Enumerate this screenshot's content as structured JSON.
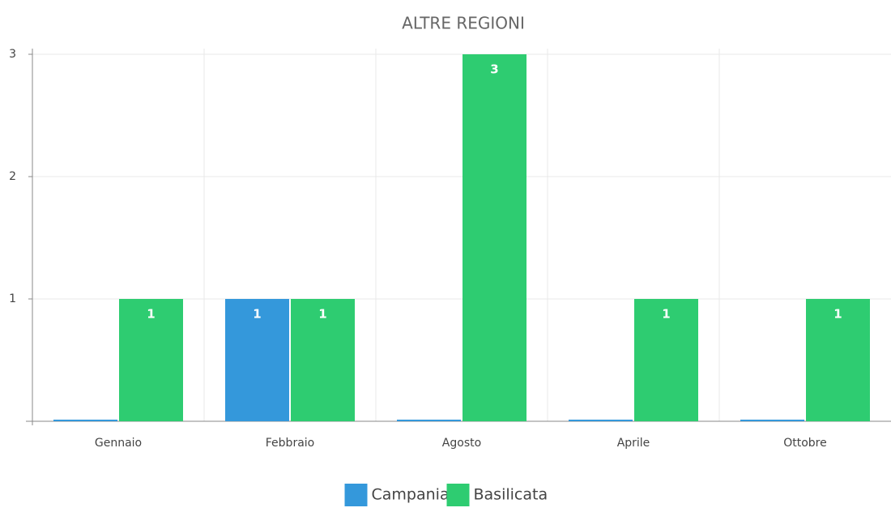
{
  "chart_data": {
    "type": "bar",
    "title": "ALTRE REGIONI",
    "categories": [
      "Gennaio",
      "Febbraio",
      "Agosto",
      "Aprile",
      "Ottobre"
    ],
    "series": [
      {
        "name": "Campania",
        "color": "#3498db",
        "values": [
          0,
          1,
          0,
          0,
          0
        ]
      },
      {
        "name": "Basilicata",
        "color": "#2ecc71",
        "values": [
          1,
          1,
          3,
          1,
          1
        ]
      }
    ],
    "ylim": [
      0,
      3
    ],
    "yticks": [
      1,
      2,
      3
    ],
    "grid": true,
    "legend": "bottom"
  }
}
